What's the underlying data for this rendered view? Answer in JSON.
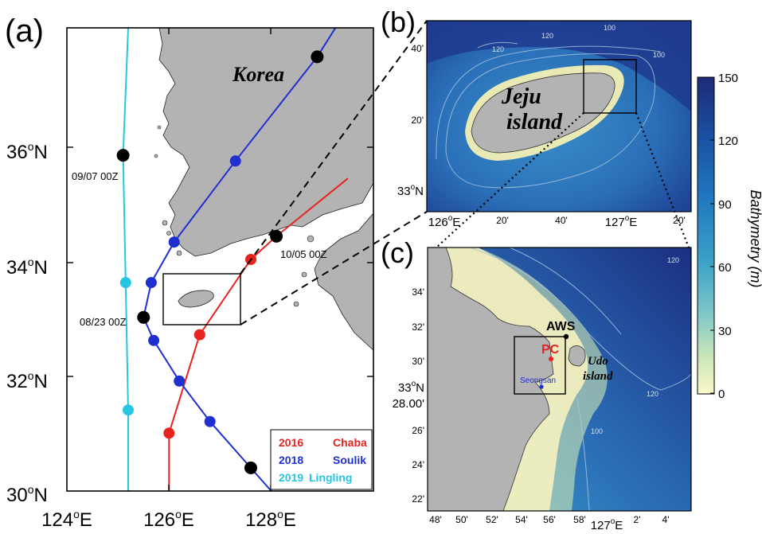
{
  "panel_a": {
    "label": "(a)",
    "region_label": "Korea",
    "y_ticks": [
      "30",
      "32",
      "34",
      "36"
    ],
    "y_suffix": "N",
    "x_ticks": [
      "124",
      "126",
      "128"
    ],
    "x_suffix": "E",
    "annotations": [
      "09/07 00Z",
      "10/05 00Z",
      "08/23 00Z"
    ],
    "legend": [
      {
        "year": "2016",
        "name": "Chaba",
        "color": "#e8231f"
      },
      {
        "year": "2018",
        "name": "Soulik",
        "color": "#1f2fd0"
      },
      {
        "year": "2019",
        "name": "Lingling",
        "color": "#26c6e0"
      }
    ],
    "tracks": [
      {
        "name": "Chaba",
        "color": "#e8231f",
        "lonlat": [
          [
            126.0,
            30.0
          ],
          [
            126.0,
            31.0
          ],
          [
            126.6,
            32.7
          ],
          [
            127.6,
            34.0
          ],
          [
            128.1,
            34.4
          ],
          [
            129.5,
            35.4
          ]
        ]
      },
      {
        "name": "Soulik",
        "color": "#1f2fd0",
        "lonlat": [
          [
            128.0,
            30.0
          ],
          [
            127.6,
            30.4
          ],
          [
            126.8,
            31.2
          ],
          [
            126.2,
            31.9
          ],
          [
            125.7,
            32.6
          ],
          [
            125.5,
            33.0
          ],
          [
            125.65,
            33.6
          ],
          [
            126.1,
            34.3
          ],
          [
            127.3,
            35.7
          ],
          [
            128.9,
            37.5
          ],
          [
            129.4,
            38.2
          ]
        ]
      },
      {
        "name": "Lingling",
        "color": "#26c6e0",
        "lonlat": [
          [
            125.2,
            30.0
          ],
          [
            125.2,
            31.4
          ],
          [
            125.15,
            33.6
          ],
          [
            125.1,
            35.8
          ],
          [
            125.2,
            38.0
          ]
        ]
      }
    ],
    "black_dots": [
      [
        125.1,
        35.8
      ],
      [
        128.1,
        34.4
      ],
      [
        125.5,
        33.0
      ],
      [
        127.6,
        30.4
      ],
      [
        128.9,
        37.5
      ]
    ]
  },
  "panel_b": {
    "label": "(b)",
    "island_label_1": "Jeju",
    "island_label_2": "island",
    "y_ticks": [
      "40'",
      "20'",
      "33"
    ],
    "x_ticks": [
      "126",
      "20'",
      "40'",
      "127",
      "20'"
    ],
    "contour_labels": [
      "120",
      "120",
      "100",
      "100"
    ]
  },
  "panel_c": {
    "label": "(c)",
    "station_label": "AWS",
    "site_label": "PC",
    "town_label": "Seongsan",
    "island_label_1": "Udo",
    "island_label_2": "island",
    "y_ticks": [
      "34'",
      "32'",
      "30'",
      "28.00'",
      "26'",
      "24'",
      "22'"
    ],
    "y_deg": "33",
    "x_ticks": [
      "48'",
      "50'",
      "52'",
      "54'",
      "56'",
      "58'",
      "127",
      "2'",
      "4'"
    ],
    "contour_labels": [
      "120",
      "120",
      "100"
    ]
  },
  "colorbar": {
    "label": "Bathymetry (m)",
    "ticks": [
      "150",
      "120",
      "90",
      "60",
      "30",
      "0"
    ],
    "colors": [
      "#1c2a78",
      "#1a4fa0",
      "#1f78c0",
      "#3aa1c8",
      "#7fc8c8",
      "#c9e6b8",
      "#fbf8c8"
    ]
  }
}
